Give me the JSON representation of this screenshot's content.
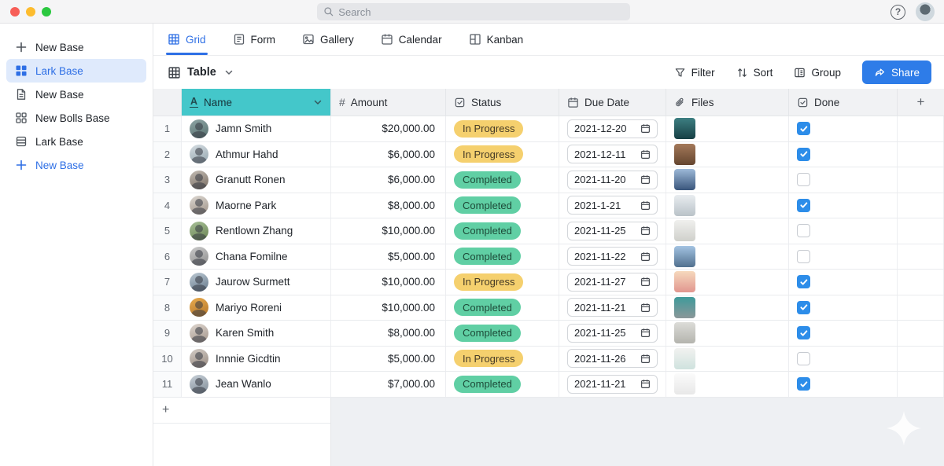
{
  "topbar": {
    "search_placeholder": "Search",
    "traffic_lights": [
      "#f75e57",
      "#fdbc2e",
      "#2bc840"
    ]
  },
  "sidebar": {
    "items": [
      {
        "icon": "plus",
        "label": "New Base",
        "style": "plain"
      },
      {
        "icon": "grid-filled",
        "label": "Lark Base",
        "style": "active"
      },
      {
        "icon": "document",
        "label": "New Base",
        "style": "plain"
      },
      {
        "icon": "grid-outline",
        "label": "New Bolls Base",
        "style": "plain"
      },
      {
        "icon": "database",
        "label": "Lark Base",
        "style": "plain"
      },
      {
        "icon": "plus",
        "label": "New Base",
        "style": "accent"
      }
    ]
  },
  "view_tabs": [
    {
      "icon": "grid3",
      "label": "Grid",
      "active": true
    },
    {
      "icon": "form",
      "label": "Form",
      "active": false
    },
    {
      "icon": "gallery",
      "label": "Gallery",
      "active": false
    },
    {
      "icon": "calendar",
      "label": "Calendar",
      "active": false
    },
    {
      "icon": "kanban",
      "label": "Kanban",
      "active": false
    }
  ],
  "toolbar": {
    "table_label": "Table",
    "filter_label": "Filter",
    "sort_label": "Sort",
    "group_label": "Group",
    "share_label": "Share",
    "share_color": "#2e7ce8"
  },
  "table": {
    "columns": [
      {
        "key": "name",
        "icon": "text",
        "label": "Name",
        "selected": true,
        "header_color": "#44c7ca"
      },
      {
        "key": "amount",
        "icon": "number",
        "label": "Amount",
        "selected": false
      },
      {
        "key": "status",
        "icon": "checksq",
        "label": "Status",
        "selected": false
      },
      {
        "key": "due",
        "icon": "calendar",
        "label": "Due Date",
        "selected": false
      },
      {
        "key": "files",
        "icon": "paperclip",
        "label": "Files",
        "selected": false
      },
      {
        "key": "done",
        "icon": "checksq",
        "label": "Done",
        "selected": false
      }
    ],
    "status_styles": {
      "In Progress": {
        "bg": "#f5d06e",
        "text": "#453a26"
      },
      "Completed": {
        "bg": "#60cfa4",
        "text": "#1d4a38"
      }
    },
    "checkbox_color": "#2d8de9",
    "add_row_label": "+",
    "add_column_label": "+",
    "rows": [
      {
        "num": 1,
        "name": "Jamn Smith",
        "amount": "$20,000.00",
        "status": "In Progress",
        "due": "2021-12-20",
        "done": true,
        "avatar": [
          "#8fa5a5",
          "#56706e"
        ],
        "file": [
          "#3d7f82",
          "#173f44"
        ]
      },
      {
        "num": 2,
        "name": "Athmur Hahd",
        "amount": "$6,000.00",
        "status": "In Progress",
        "due": "2021-12-11",
        "done": true,
        "avatar": [
          "#d6dde2",
          "#93a5ae"
        ],
        "file": [
          "#a4795a",
          "#64452f"
        ]
      },
      {
        "num": 3,
        "name": "Granutt Ronen",
        "amount": "$6,000.00",
        "status": "Completed",
        "due": "2021-11-20",
        "done": false,
        "avatar": [
          "#c3bcb4",
          "#776b60"
        ],
        "file": [
          "#9db9d8",
          "#39557b"
        ]
      },
      {
        "num": 4,
        "name": "Maorne Park",
        "amount": "$8,000.00",
        "status": "Completed",
        "due": "2021-1-21",
        "done": true,
        "avatar": [
          "#ddd8d2",
          "#9d9186"
        ],
        "file": [
          "#e9edf0",
          "#b9c2c8"
        ]
      },
      {
        "num": 5,
        "name": "Rentlown Zhang",
        "amount": "$10,000.00",
        "status": "Completed",
        "due": "2021-11-25",
        "done": false,
        "avatar": [
          "#a8c098",
          "#67824f"
        ],
        "file": [
          "#f0f0ee",
          "#cfd0cb"
        ]
      },
      {
        "num": 6,
        "name": "Chana Fomilne",
        "amount": "$5,000.00",
        "status": "Completed",
        "due": "2021-11-22",
        "done": false,
        "avatar": [
          "#cbcbcb",
          "#8c8c8c"
        ],
        "file": [
          "#a3c3e2",
          "#51708e"
        ]
      },
      {
        "num": 7,
        "name": "Jaurow Surmett",
        "amount": "$10,000.00",
        "status": "In Progress",
        "due": "2021-11-27",
        "done": true,
        "avatar": [
          "#bcc9d3",
          "#64778a"
        ],
        "file": [
          "#f6d9bd",
          "#e1968f"
        ]
      },
      {
        "num": 8,
        "name": "Mariyo Roreni",
        "amount": "$10,000.00",
        "status": "Completed",
        "due": "2021-11-21",
        "done": true,
        "avatar": [
          "#e8ab4e",
          "#b3752a"
        ],
        "file": [
          "#3f9a9a",
          "#8b9799"
        ]
      },
      {
        "num": 9,
        "name": "Karen Smith",
        "amount": "$8,000.00",
        "status": "Completed",
        "due": "2021-11-25",
        "done": true,
        "avatar": [
          "#ded6cf",
          "#a2948a"
        ],
        "file": [
          "#dcdcd8",
          "#b4b4ae"
        ]
      },
      {
        "num": 10,
        "name": "Innnie Gicdtin",
        "amount": "$5,000.00",
        "status": "In Progress",
        "due": "2021-11-26",
        "done": false,
        "avatar": [
          "#d3ccc6",
          "#96897f"
        ],
        "file": [
          "#f2f2f0",
          "#cfe2de"
        ]
      },
      {
        "num": 11,
        "name": "Jean Wanlo",
        "amount": "$7,000.00",
        "status": "Completed",
        "due": "2021-11-21",
        "done": true,
        "avatar": [
          "#c8d0d8",
          "#7e8b96"
        ],
        "file": [
          "#fbfbfb",
          "#e8e8e8"
        ]
      }
    ]
  }
}
